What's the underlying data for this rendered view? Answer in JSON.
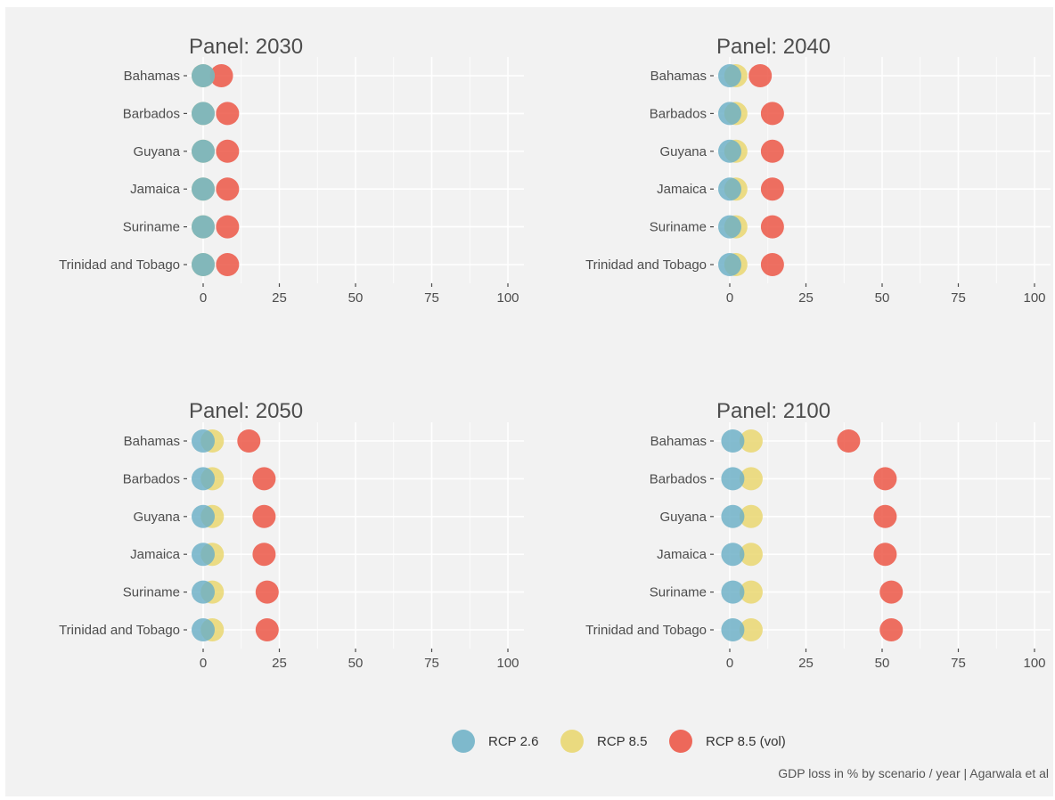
{
  "chart_data": {
    "type": "scatter",
    "chart_kind": "dot plot",
    "caption": "GDP loss in % by scenario / year | Agarwala et al",
    "xlim": [
      0,
      100
    ],
    "xticks": [
      0,
      25,
      50,
      75,
      100
    ],
    "grid": true,
    "legend_position": "bottom",
    "categories": [
      "Bahamas",
      "Barbados",
      "Guyana",
      "Jamaica",
      "Suriname",
      "Trinidad and Tobago"
    ],
    "series_styles": [
      {
        "name": "RCP 2.6",
        "color": "#6aafc6"
      },
      {
        "name": "RCP 8.5",
        "color": "#e9d66b"
      },
      {
        "name": "RCP 8.5 (vol)",
        "color": "#ec5040"
      }
    ],
    "panels": [
      {
        "title": "Panel: 2030",
        "series": [
          {
            "name": "RCP 2.6",
            "values": [
              0,
              0,
              0,
              0,
              0,
              0
            ]
          },
          {
            "name": "RCP 8.5",
            "values": [
              0,
              0,
              0,
              0,
              0,
              0
            ]
          },
          {
            "name": "RCP 8.5 (vol)",
            "values": [
              6,
              8,
              8,
              8,
              8,
              8
            ]
          }
        ]
      },
      {
        "title": "Panel: 2040",
        "series": [
          {
            "name": "RCP 2.6",
            "values": [
              0,
              0,
              0,
              0,
              0,
              0
            ]
          },
          {
            "name": "RCP 8.5",
            "values": [
              2,
              2,
              2,
              2,
              2,
              2
            ]
          },
          {
            "name": "RCP 8.5 (vol)",
            "values": [
              10,
              14,
              14,
              14,
              14,
              14
            ]
          }
        ]
      },
      {
        "title": "Panel: 2050",
        "series": [
          {
            "name": "RCP 2.6",
            "values": [
              0,
              0,
              0,
              0,
              0,
              0
            ]
          },
          {
            "name": "RCP 8.5",
            "values": [
              3,
              3,
              3,
              3,
              3,
              3
            ]
          },
          {
            "name": "RCP 8.5 (vol)",
            "values": [
              15,
              20,
              20,
              20,
              21,
              21
            ]
          }
        ]
      },
      {
        "title": "Panel: 2100",
        "series": [
          {
            "name": "RCP 2.6",
            "values": [
              1,
              1,
              1,
              1,
              1,
              1
            ]
          },
          {
            "name": "RCP 8.5",
            "values": [
              7,
              7,
              7,
              7,
              7,
              7
            ]
          },
          {
            "name": "RCP 8.5 (vol)",
            "values": [
              39,
              51,
              51,
              51,
              53,
              53
            ]
          }
        ]
      }
    ]
  }
}
